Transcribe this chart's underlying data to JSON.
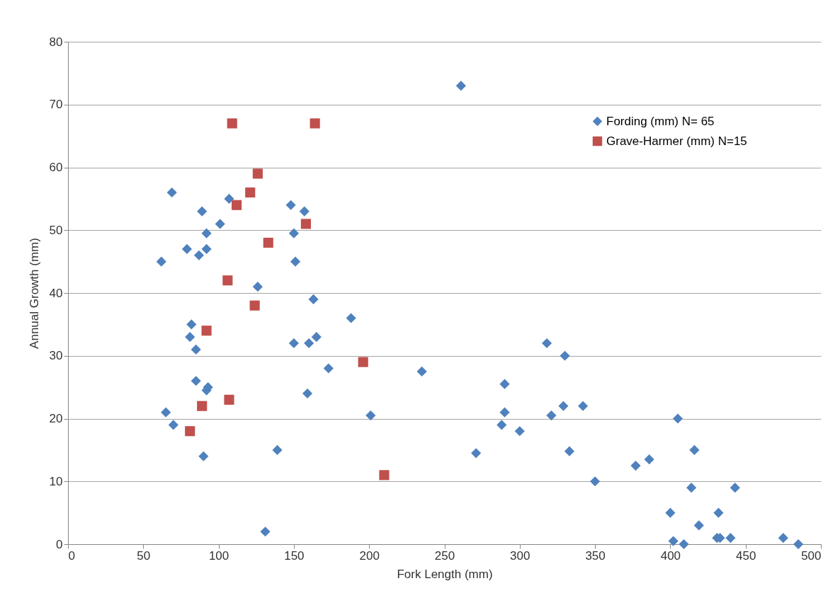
{
  "chart_data": {
    "type": "scatter",
    "xlabel": "Fork Length (mm)",
    "ylabel": "Annual Growth (mm)",
    "xlim": [
      0,
      500
    ],
    "xticks": [
      0,
      50,
      100,
      150,
      200,
      250,
      300,
      350,
      400,
      450,
      500
    ],
    "ylim": [
      0,
      80
    ],
    "yticks": [
      0,
      10,
      20,
      30,
      40,
      50,
      60,
      70,
      80
    ],
    "grid": "y",
    "legend": "top right",
    "series": [
      {
        "name": "Fording (mm) N= 65",
        "color": "#4f81bd",
        "marker": "diamond",
        "x": [
          62,
          65,
          69,
          70,
          79,
          82,
          81,
          85,
          85,
          87,
          89,
          90,
          92,
          92,
          92,
          93,
          101,
          107,
          126,
          131,
          139,
          148,
          150,
          150,
          151,
          157,
          159,
          160,
          163,
          165,
          173,
          188,
          201,
          235,
          261,
          271,
          288,
          290,
          290,
          300,
          318,
          321,
          329,
          330,
          333,
          342,
          350,
          377,
          386,
          400,
          402,
          405,
          409,
          414,
          416,
          419,
          431,
          432,
          433,
          440,
          443,
          475,
          485
        ],
        "values": [
          45,
          21,
          56,
          19,
          47,
          35,
          33,
          31,
          26,
          46,
          53,
          14,
          49.5,
          47,
          24.5,
          25,
          51,
          55,
          41,
          2,
          15,
          54,
          49.5,
          32,
          45,
          53,
          24,
          32,
          39,
          33,
          28,
          36,
          20.5,
          27.5,
          73,
          14.5,
          19,
          25.5,
          21,
          18,
          32,
          20.5,
          22,
          30,
          14.8,
          22,
          10,
          12.5,
          13.5,
          5,
          0.5,
          20,
          0,
          9,
          15,
          3,
          1,
          5,
          1,
          1,
          9,
          1,
          0
        ]
      },
      {
        "name": "Grave-Harmer (mm) N=15",
        "color": "#c0504d",
        "marker": "square",
        "x": [
          81,
          89,
          92,
          106,
          107,
          109,
          112,
          121,
          124,
          126,
          133,
          158,
          164,
          196,
          210
        ],
        "values": [
          18,
          22,
          34,
          42,
          23,
          67,
          54,
          56,
          38,
          59,
          48,
          51,
          67,
          29,
          11
        ]
      }
    ]
  }
}
